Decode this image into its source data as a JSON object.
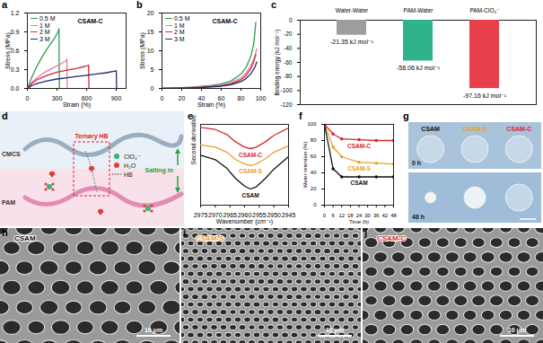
{
  "chart_data": [
    {
      "panel": "a",
      "type": "line",
      "annotations": [
        "CSAM-C"
      ],
      "x_label": "Strain (%)",
      "y_label": "Stress (MPa)",
      "xlim": [
        0,
        1000
      ],
      "xticks": [
        0,
        300,
        600,
        900
      ],
      "ylim": [
        0,
        1.2
      ],
      "yticks": [
        {
          "value": 0,
          "label": "0.0"
        },
        0.3,
        0.6,
        0.9,
        1.2
      ],
      "legend": "top-left",
      "series": [
        {
          "name": "0.5 M",
          "color": "#2e9e4f",
          "x": [
            0,
            40,
            80,
            120,
            160,
            200,
            240,
            280,
            310,
            320,
            324
          ],
          "values": [
            0,
            0.16,
            0.3,
            0.42,
            0.53,
            0.63,
            0.72,
            0.81,
            0.9,
            0.95,
            0
          ]
        },
        {
          "name": "1 M",
          "color": "#e87aa8",
          "x": [
            0,
            50,
            100,
            150,
            200,
            250,
            300,
            350,
            390,
            400,
            404
          ],
          "values": [
            0,
            0.1,
            0.17,
            0.23,
            0.28,
            0.32,
            0.36,
            0.4,
            0.44,
            0.47,
            0
          ]
        },
        {
          "name": "2 M",
          "color": "#d62839",
          "x": [
            0,
            50,
            100,
            200,
            300,
            400,
            500,
            580,
            620,
            624
          ],
          "values": [
            0,
            0.09,
            0.14,
            0.21,
            0.26,
            0.29,
            0.32,
            0.35,
            0.37,
            0
          ]
        },
        {
          "name": "3 M",
          "color": "#1f2a6b",
          "x": [
            0,
            50,
            100,
            200,
            300,
            400,
            500,
            600,
            700,
            800,
            900,
            904
          ],
          "values": [
            0,
            0.05,
            0.08,
            0.12,
            0.15,
            0.17,
            0.19,
            0.21,
            0.23,
            0.25,
            0.28,
            0
          ]
        }
      ]
    },
    {
      "panel": "b",
      "type": "line",
      "annotations": [
        "CSAM-C"
      ],
      "x_label": "Strain (%)",
      "y_label": "Stress (MPa)",
      "xlim": [
        0,
        100
      ],
      "xticks": [
        0,
        20,
        40,
        60,
        80,
        100
      ],
      "ylim": [
        0,
        20
      ],
      "yticks": [
        0,
        5,
        10,
        15,
        20
      ],
      "legend": "top-left",
      "series": [
        {
          "name": "0.5 M",
          "color": "#2e9e4f",
          "x": [
            0,
            10,
            20,
            30,
            40,
            50,
            60,
            70,
            80,
            85,
            90,
            93,
            95
          ],
          "values": [
            0,
            0.1,
            0.2,
            0.35,
            0.55,
            0.8,
            1.2,
            2,
            3.8,
            5.5,
            8.5,
            12,
            17.5
          ]
        },
        {
          "name": "1 M",
          "color": "#e87aa8",
          "x": [
            0,
            20,
            40,
            60,
            70,
            80,
            85,
            90,
            94,
            96
          ],
          "values": [
            0,
            0.15,
            0.4,
            0.9,
            1.5,
            2.8,
            4,
            6,
            8.5,
            10.5
          ]
        },
        {
          "name": "2 M",
          "color": "#d62839",
          "x": [
            0,
            20,
            40,
            60,
            70,
            80,
            85,
            90,
            93,
            95
          ],
          "values": [
            0,
            0.1,
            0.3,
            0.7,
            1.2,
            2.3,
            3.4,
            5.2,
            7.2,
            9
          ]
        },
        {
          "name": "3 M",
          "color": "#1f2a6b",
          "x": [
            0,
            20,
            40,
            60,
            70,
            80,
            85,
            90,
            94,
            96
          ],
          "values": [
            0,
            0.1,
            0.25,
            0.6,
            1,
            1.8,
            2.6,
            3.9,
            5.6,
            7
          ]
        }
      ]
    },
    {
      "panel": "c",
      "type": "bar",
      "y_label": "Binding energy (kJ mol⁻¹)",
      "categories": [
        "Water-Water",
        "PAM-Water",
        "PAM-ClO₄⁻"
      ],
      "values": [
        -21.35,
        -58.06,
        -97.16
      ],
      "value_labels": [
        "-21.35 kJ mol⁻¹",
        "-58.06 kJ mol⁻¹",
        "-97.16 kJ mol⁻¹"
      ],
      "data_labels": true,
      "colors": [
        "#9e9e9e",
        "#2fb38c",
        "#e8404a"
      ],
      "ylim": [
        -120,
        0
      ],
      "yticks": [
        0,
        -20,
        -40,
        -60,
        -80,
        -100,
        -120
      ]
    },
    {
      "panel": "e",
      "type": "line",
      "x_label": "Wavenumber (cm⁻¹)",
      "y_label": "Second derivative",
      "tick_labels": "x",
      "xlim": [
        2975,
        2945
      ],
      "xticks": [
        2975,
        2970,
        2965,
        2960,
        2955,
        2950,
        2945
      ],
      "ylim": [
        -1,
        10
      ],
      "x": [
        2975,
        2970,
        2966,
        2963,
        2960,
        2958,
        2956,
        2953,
        2950,
        2945
      ],
      "series": [
        {
          "name": "CSAM-C",
          "color": "#d9262b",
          "values": [
            9.6,
            9.3,
            8.6,
            7.6,
            6.9,
            6.7,
            6.9,
            7.6,
            8.5,
            9.5
          ]
        },
        {
          "name": "CSAM-S",
          "color": "#e8a02a",
          "values": [
            7.2,
            6.9,
            6.2,
            5.2,
            4.6,
            4.4,
            4.6,
            5.3,
            6.2,
            7.1
          ]
        },
        {
          "name": "CSAM",
          "color": "#111111",
          "values": [
            5.8,
            5.2,
            4,
            2.6,
            1.6,
            1.2,
            1.5,
            2.6,
            3.9,
            5.6
          ]
        }
      ]
    },
    {
      "panel": "f",
      "type": "line",
      "marker": "circle",
      "x_label": "Time (h)",
      "y_label": "Water retention (%)",
      "xlim": [
        0,
        48
      ],
      "xticks": [
        0,
        6,
        12,
        18,
        24,
        30,
        36,
        42,
        48
      ],
      "ylim": [
        0,
        100
      ],
      "yticks": [
        0,
        20,
        40,
        60,
        80,
        100
      ],
      "x": [
        0,
        6,
        12,
        24,
        36,
        48
      ],
      "series": [
        {
          "name": "CSAM-C",
          "color": "#d9262b",
          "values": [
            100,
            88,
            82,
            81,
            80,
            80
          ]
        },
        {
          "name": "CSAM-S",
          "color": "#e8a02a",
          "values": [
            100,
            72,
            60,
            53,
            52,
            51
          ]
        },
        {
          "name": "CSAM",
          "color": "#111111",
          "values": [
            100,
            45,
            35,
            35,
            35,
            35
          ]
        }
      ]
    }
  ],
  "diagram": {
    "panel": "d",
    "chains": [
      {
        "name": "CMCS",
        "color": "#9aaec2"
      },
      {
        "name": "PAM",
        "color": "#e48ab3"
      }
    ],
    "box_label": "Ternary HB",
    "arrow_label": "Salting in",
    "legend": [
      {
        "label": "ClO₄⁻",
        "color": "#3cb371",
        "marker": "circle"
      },
      {
        "label": "H₂O",
        "color": "#e23b3b",
        "marker": "circle"
      },
      {
        "label": "HB",
        "color": "#333333",
        "marker": "line",
        "line_style": "dotted"
      }
    ]
  },
  "photos": {
    "panel": "g",
    "samples": [
      {
        "name": "CSAM",
        "color": "#111111"
      },
      {
        "name": "CSAM-S",
        "color": "#e8a02a"
      },
      {
        "name": "CSAM-C",
        "color": "#d9262b"
      }
    ],
    "times": [
      "0 h",
      "48 h"
    ]
  },
  "micrographs": [
    {
      "panel": "h",
      "name": "CSAM",
      "color": "#111111",
      "scale": "10 μm"
    },
    {
      "panel": "i",
      "name": "CSAM-S",
      "color": "#e8a02a",
      "scale": "10 μm"
    },
    {
      "panel": "j",
      "name": "CSAM-C",
      "color": "#d9262b",
      "scale": "10 μm"
    }
  ]
}
